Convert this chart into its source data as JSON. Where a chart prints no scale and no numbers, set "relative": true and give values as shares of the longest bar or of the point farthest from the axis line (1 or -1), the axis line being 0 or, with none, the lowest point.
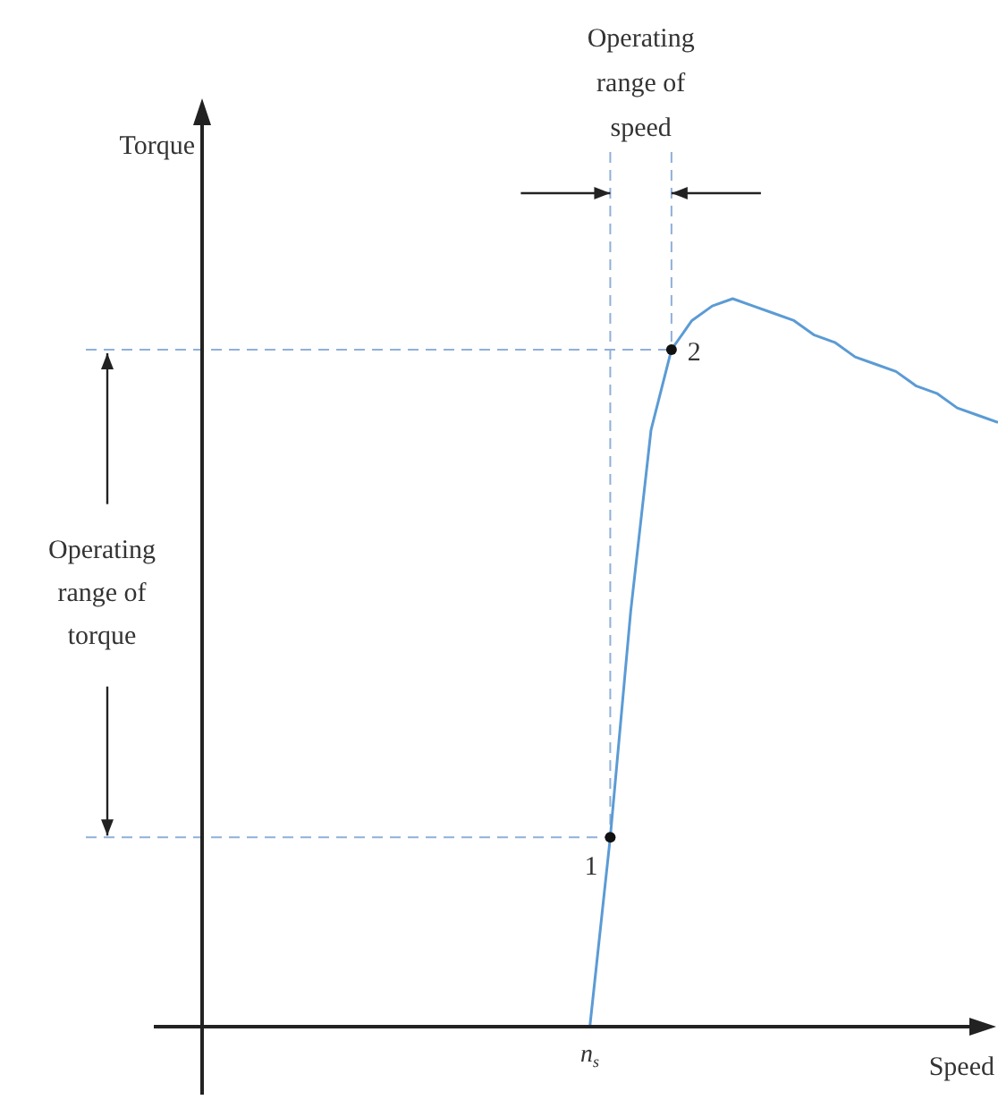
{
  "chart_data": {
    "type": "line",
    "relative": true,
    "xlabel": "Speed",
    "legend": false,
    "line_style": "solid",
    "marker": "none",
    "categories": [
      null,
      null,
      null,
      null,
      null,
      null,
      null,
      null,
      null,
      null,
      null,
      null,
      null,
      null,
      null,
      null,
      null,
      null,
      null,
      null,
      null,
      null,
      null,
      null,
      null,
      null,
      null,
      null,
      null,
      null,
      null,
      null,
      null,
      null,
      null,
      null,
      null,
      null,
      null,
      null
    ],
    "series": [
      {
        "color": "#5b9bd5",
        "values": [
          null,
          null,
          null,
          null,
          null,
          null,
          null,
          null,
          null,
          null,
          null,
          null,
          null,
          null,
          null,
          null,
          null,
          null,
          null,
          0,
          0.26,
          0.57,
          0.82,
          0.93,
          0.97,
          0.99,
          1,
          0.99,
          0.98,
          0.97,
          0.95,
          0.94,
          0.92,
          0.91,
          0.9,
          0.88,
          0.87,
          0.85,
          0.84,
          0.83
        ]
      }
    ],
    "ref_lines": [
      {
        "axis": "y",
        "value": 0.26,
        "color": "#8fb0d8",
        "line_style": "dashed"
      },
      {
        "axis": "y",
        "value": 0.93,
        "color": "#8fb0d8",
        "line_style": "dashed"
      }
    ],
    "annotations": [
      "Operating range of speed",
      "Operating range of torque",
      "Torque",
      "n$_{s}$",
      "1",
      "2"
    ]
  }
}
